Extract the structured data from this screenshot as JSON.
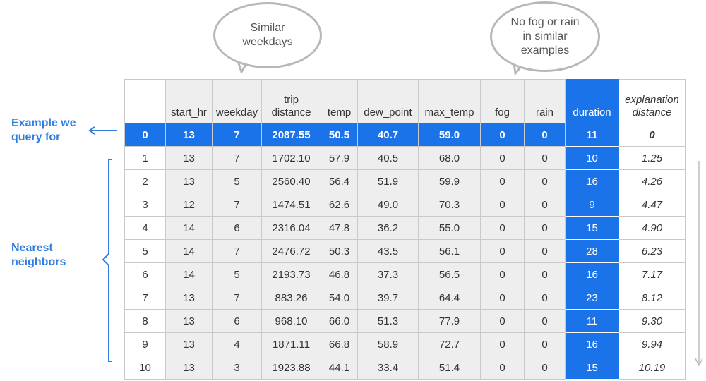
{
  "bubbles": {
    "weekday_note": "Similar\nweekdays",
    "weather_note": "No fog or rain\nin similar\nexamples"
  },
  "labels": {
    "query": "Example we\nquery for",
    "neighbors": "Nearest\nneighbors"
  },
  "colors": {
    "accent": "#1a73e8",
    "label_blue": "#2f7de1",
    "feature_gray": "#eeeeee",
    "bubble_border": "#b8b8b8"
  },
  "table": {
    "headers": [
      "",
      "start_hr",
      "weekday",
      "trip\ndistance",
      "temp",
      "dew_point",
      "max_temp",
      "fog",
      "rain",
      "duration",
      "explanation\ndistance"
    ],
    "query_row": [
      "0",
      "13",
      "7",
      "2087.55",
      "50.5",
      "40.7",
      "59.0",
      "0",
      "0",
      "11",
      "0"
    ],
    "rows": [
      [
        "1",
        "13",
        "7",
        "1702.10",
        "57.9",
        "40.5",
        "68.0",
        "0",
        "0",
        "10",
        "1.25"
      ],
      [
        "2",
        "13",
        "5",
        "2560.40",
        "56.4",
        "51.9",
        "59.9",
        "0",
        "0",
        "16",
        "4.26"
      ],
      [
        "3",
        "12",
        "7",
        "1474.51",
        "62.6",
        "49.0",
        "70.3",
        "0",
        "0",
        "9",
        "4.47"
      ],
      [
        "4",
        "14",
        "6",
        "2316.04",
        "47.8",
        "36.2",
        "55.0",
        "0",
        "0",
        "15",
        "4.90"
      ],
      [
        "5",
        "14",
        "7",
        "2476.72",
        "50.3",
        "43.5",
        "56.1",
        "0",
        "0",
        "28",
        "6.23"
      ],
      [
        "6",
        "14",
        "5",
        "2193.73",
        "46.8",
        "37.3",
        "56.5",
        "0",
        "0",
        "16",
        "7.17"
      ],
      [
        "7",
        "13",
        "7",
        "883.26",
        "54.0",
        "39.7",
        "64.4",
        "0",
        "0",
        "23",
        "8.12"
      ],
      [
        "8",
        "13",
        "6",
        "968.10",
        "66.0",
        "51.3",
        "77.9",
        "0",
        "0",
        "11",
        "9.30"
      ],
      [
        "9",
        "13",
        "4",
        "1871.11",
        "66.8",
        "58.9",
        "72.7",
        "0",
        "0",
        "16",
        "9.94"
      ],
      [
        "10",
        "13",
        "3",
        "1923.88",
        "44.1",
        "33.4",
        "51.4",
        "0",
        "0",
        "15",
        "10.19"
      ]
    ]
  }
}
